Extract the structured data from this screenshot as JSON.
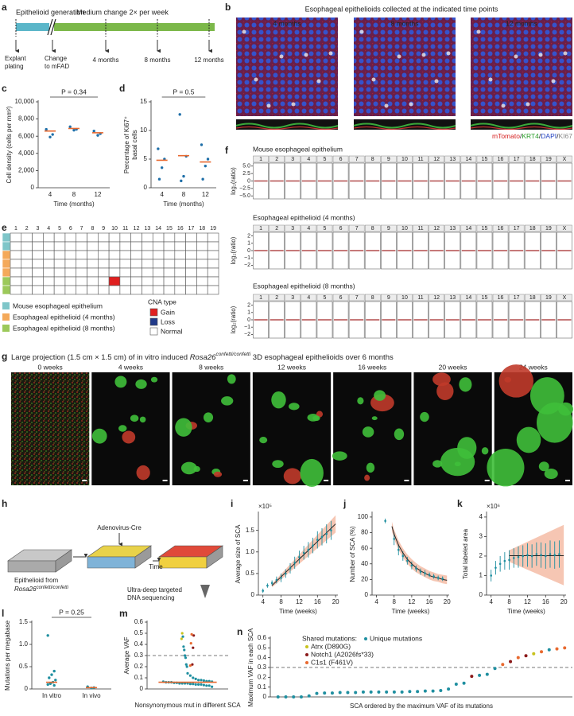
{
  "letters": [
    "a",
    "b",
    "c",
    "d",
    "e",
    "f",
    "g",
    "h",
    "i",
    "j",
    "k",
    "l",
    "m",
    "n"
  ],
  "panel_a": {
    "phase1": "Epithelioid generation",
    "phase1_color": "#5bb6c9",
    "phase2": "Medium change 2× per week",
    "phase2_color": "#7cb84a",
    "explant": [
      "Explant",
      "plating"
    ],
    "change": [
      "Change",
      "to mFAD"
    ],
    "timepoints": [
      "4 months",
      "8 months",
      "12 months"
    ]
  },
  "panel_b": {
    "title": "Esophageal epithelioids collected at the indicated time points",
    "labels": [
      "4 months",
      "8 months",
      "12 months"
    ],
    "stains": [
      {
        "text": "mTomato",
        "color": "#d62020"
      },
      {
        "text": "/",
        "color": "#222222"
      },
      {
        "text": "KRT4",
        "color": "#2a9d2a"
      },
      {
        "text": "/",
        "color": "#222222"
      },
      {
        "text": "DAPI",
        "color": "#2040c0"
      },
      {
        "text": "/",
        "color": "#222222"
      },
      {
        "text": "KI67",
        "color": "#888888"
      }
    ]
  },
  "panel_e": {
    "columns": [
      1,
      2,
      3,
      4,
      5,
      6,
      7,
      8,
      9,
      10,
      11,
      12,
      13,
      14,
      15,
      16,
      17,
      18,
      19
    ],
    "row_groups": [
      0,
      0,
      1,
      1,
      1,
      2,
      2
    ],
    "gains": [
      [
        5,
        9
      ]
    ],
    "groups": [
      {
        "name": "Mouse esophageal epithelium",
        "color": "#7fc6c9"
      },
      {
        "name": "Esophageal epithelioid (4 months)",
        "color": "#f4a95a"
      },
      {
        "name": "Esophageal epithelioid (8 months)",
        "color": "#9cc95a"
      }
    ],
    "cna_title": "CNA type",
    "cna": [
      {
        "name": "Gain",
        "color": "#e02020"
      },
      {
        "name": "Loss",
        "color": "#203a8a"
      },
      {
        "name": "Normal",
        "color": "#ffffff"
      }
    ]
  },
  "panel_f": {
    "ylabel": "log₂(ratio)",
    "chromosomes": [
      1,
      2,
      3,
      4,
      5,
      6,
      7,
      8,
      9,
      10,
      11,
      12,
      13,
      14,
      15,
      16,
      17,
      18,
      19,
      "X"
    ],
    "plots": [
      {
        "title": "Mouse esophageal epithelium",
        "ylim": [
          -6,
          6
        ],
        "yticks": [
          {
            "value": 5,
            "label": "5.0"
          },
          2.5,
          0,
          {
            "value": -2.5,
            "label": "−2.5"
          },
          {
            "value": -5,
            "label": "−5.0"
          }
        ]
      },
      {
        "title": "Esophageal epithelioid (4 months)",
        "ylim": [
          -2.5,
          2.5
        ],
        "yticks": [
          2,
          1,
          0,
          {
            "value": -1,
            "label": "−1"
          },
          {
            "value": -2,
            "label": "−2"
          }
        ]
      },
      {
        "title": "Esophageal epithelioid (8 months)",
        "ylim": [
          -2.5,
          2.5
        ],
        "yticks": [
          2,
          1,
          0,
          {
            "value": -1,
            "label": "−1"
          },
          {
            "value": -2,
            "label": "−2"
          }
        ]
      }
    ]
  },
  "panel_g": {
    "title": [
      "Large projection (1.5 cm × 1.5 cm) of in vitro induced ",
      "Rosa26",
      "confetti/confetti",
      " 3D esophageal epithelioids over 6 months"
    ],
    "labels": [
      "0 weeks",
      "4 weeks",
      "8 weeks",
      "12 weeks",
      "16 weeks",
      "20 weeks",
      "24 weeks"
    ]
  },
  "panel_h": {
    "virus": "Adenovirus-Cre",
    "time": "Time",
    "source": [
      "Epithelioid from",
      "Rosa26",
      "confetti/confetti"
    ],
    "sequencing": [
      "Ultra-deep targeted",
      "DNA sequencing"
    ]
  },
  "chart_data": [
    {
      "type": "dot",
      "ylabel": "Cell density (cells per mm²)",
      "xlabel": "Time (months)",
      "categories": [
        "4",
        "8",
        "12"
      ],
      "values": [
        [
          6800,
          6200,
          5900
        ],
        [
          7100,
          6800,
          6700
        ],
        [
          6600,
          6300,
          6100
        ]
      ],
      "medians": [
        6600,
        6900,
        6400
      ],
      "color": "#1f6fa8",
      "median_color": "#e8692f",
      "annotation": "P = 0.34",
      "ylim": [
        0,
        10000
      ],
      "yticks": [
        0,
        {
          "value": 2000,
          "label": "2,000"
        },
        {
          "value": 4000,
          "label": "4,000"
        },
        {
          "value": 6000,
          "label": "6,000"
        },
        {
          "value": 8000,
          "label": "8,000"
        },
        {
          "value": 10000,
          "label": "10,000"
        }
      ]
    },
    {
      "type": "dot",
      "ylabel": [
        "Percentage of Ki67⁺",
        "basal cells"
      ],
      "xlabel": "Time (months)",
      "categories": [
        "4",
        "8",
        "12"
      ],
      "values": [
        [
          6.8,
          5,
          3.5,
          1.5
        ],
        [
          12.8,
          5.5,
          2,
          1.2
        ],
        [
          7.5,
          5,
          3.8,
          1.5
        ]
      ],
      "medians": [
        4.8,
        5.6,
        4.5
      ],
      "color": "#1f6fa8",
      "median_color": "#e8692f",
      "annotation": "P = 0.5",
      "ylim": [
        0,
        15
      ],
      "yticks": [
        0,
        5,
        10,
        15
      ]
    },
    {
      "type": "errorbar",
      "ylabel": "Average size of SCA",
      "multiplier": "×10⁵",
      "xlabel": "Time (weeks)",
      "x": [
        4,
        5,
        6,
        7,
        8,
        9,
        10,
        11,
        12,
        13,
        14,
        15,
        16,
        17,
        18,
        19
      ],
      "values": [
        0.1,
        0.22,
        0.28,
        0.35,
        0.4,
        0.5,
        0.62,
        0.75,
        0.88,
        0.98,
        1.05,
        1.15,
        1.28,
        1.35,
        1.42,
        1.5
      ],
      "errors": [
        0.05,
        0.05,
        0.06,
        0.08,
        0.1,
        0.1,
        0.12,
        0.14,
        0.15,
        0.16,
        0.18,
        0.18,
        0.2,
        0.2,
        0.22,
        0.22
      ],
      "fit": {
        "x": [
          6,
          20
        ],
        "y": [
          0.22,
          1.65
        ],
        "low": [
          0.18,
          1.45
        ],
        "high": [
          0.26,
          1.85
        ]
      },
      "color": "#1f8fa0",
      "fit_color": "#222222",
      "band_color": "#f4b8a0",
      "xlim": [
        3,
        20.5
      ],
      "xticks": [
        4,
        8,
        12,
        16,
        20
      ],
      "ylim": [
        0,
        1.9
      ],
      "yticks": [
        0,
        0.5,
        {
          "value": 1,
          "label": "1.0"
        },
        1.5
      ]
    },
    {
      "type": "errorbar",
      "ylabel": "Number of SCA (%)",
      "xlabel": "Time (weeks)",
      "x": [
        6,
        8,
        9,
        10,
        11,
        12,
        13,
        14,
        15,
        16,
        17,
        18,
        19
      ],
      "values": [
        95,
        72,
        58,
        50,
        44,
        38,
        34,
        30,
        28,
        26,
        24,
        22,
        21
      ],
      "errors": [
        3,
        8,
        7,
        6,
        5,
        5,
        4,
        4,
        4,
        3,
        3,
        3,
        3
      ],
      "fit": {
        "x": [
          7.5,
          8,
          9,
          10,
          11,
          12,
          13,
          14,
          15,
          16,
          17,
          18,
          19,
          20
        ],
        "y": [
          88,
          78,
          64,
          54,
          46,
          40,
          35,
          31,
          28,
          25,
          23,
          22,
          20,
          19
        ],
        "low": [
          82,
          72,
          58,
          48,
          40,
          34,
          29,
          26,
          23,
          20,
          18,
          17,
          15,
          14
        ],
        "high": [
          94,
          84,
          70,
          60,
          52,
          46,
          41,
          37,
          34,
          31,
          29,
          27,
          26,
          25
        ]
      },
      "color": "#1f8fa0",
      "fit_color": "#222222",
      "band_color": "#f4b8a0",
      "xlim": [
        3,
        20.5
      ],
      "xticks": [
        4,
        8,
        12,
        16,
        20
      ],
      "ylim": [
        0,
        105
      ],
      "yticks": [
        0,
        20,
        40,
        60,
        80,
        100
      ]
    },
    {
      "type": "errorbar",
      "ylabel": "Total labeled area",
      "multiplier": "×10⁶",
      "xlabel": "Time (weeks)",
      "x": [
        4,
        5,
        6,
        7,
        8,
        9,
        10,
        11,
        12,
        13,
        14,
        15,
        16,
        17,
        18,
        19
      ],
      "values": [
        1.0,
        1.4,
        1.6,
        1.75,
        1.8,
        1.9,
        1.95,
        2.0,
        2.05,
        2.0,
        2.1,
        2.05,
        2.0,
        2.1,
        2.05,
        2.1
      ],
      "errors": [
        0.3,
        0.35,
        0.4,
        0.45,
        0.5,
        0.5,
        0.55,
        0.55,
        0.6,
        0.6,
        0.6,
        0.65,
        0.65,
        0.7,
        0.7,
        0.7
      ],
      "fit": {
        "x": [
          8,
          20
        ],
        "y": [
          2.02,
          2.02
        ],
        "low": [
          1.7,
          0.5
        ],
        "high": [
          2.3,
          3.6
        ]
      },
      "color": "#1f8fa0",
      "fit_color": "#222222",
      "band_color": "#f4b8a0",
      "xlim": [
        3,
        20.5
      ],
      "xticks": [
        4,
        8,
        12,
        16,
        20
      ],
      "ylim": [
        0,
        4.2
      ],
      "yticks": [
        0,
        1,
        2,
        3,
        4
      ]
    },
    {
      "type": "dot",
      "ylabel": "Mutations per megabase",
      "categories": [
        "In vitro",
        "In vivo"
      ],
      "values": [
        [
          1.2,
          0.4,
          0.32,
          0.25,
          0.2,
          0.15,
          0.12,
          0.1,
          0.08
        ],
        [
          0.05,
          0.03,
          0.02
        ]
      ],
      "medians": [
        0.15,
        0.03
      ],
      "color": "#1f8fa0",
      "median_color": "#e8692f",
      "annotation": "P = 0.25",
      "ylim": [
        0,
        1.5
      ],
      "yticks": [
        0,
        0.5,
        {
          "value": 1,
          "label": "1.0"
        },
        1.5
      ]
    },
    {
      "type": "strip",
      "ylabel": "Average VAF",
      "xlabel": "Nonsynonymous mut in different SCA",
      "median": 0.06,
      "median_color": "#e8692f",
      "threshold": 0.3,
      "series": [
        {
          "color": "#1f8fa0",
          "values": [
            0.02,
            0.03,
            0.03,
            0.035,
            0.04,
            0.04,
            0.04,
            0.045,
            0.045,
            0.05,
            0.05,
            0.05,
            0.05,
            0.055,
            0.055,
            0.06,
            0.06,
            0.06,
            0.065,
            0.065,
            0.07,
            0.07,
            0.075,
            0.08,
            0.08,
            0.09,
            0.1,
            0.12,
            0.14,
            0.2,
            0.22,
            0.28,
            0.3,
            0.35,
            0.38,
            0.47
          ]
        },
        {
          "color": "#c8c21e",
          "values": [
            0.5,
            0.45
          ]
        },
        {
          "color": "#8b1a1a",
          "values": [
            0.48,
            0.37,
            0.22
          ]
        },
        {
          "color": "#e8692f",
          "values": [
            0.49,
            0.41,
            0.21
          ]
        }
      ],
      "ylim": [
        0,
        0.6
      ],
      "yticks": [
        0,
        0.1,
        0.2,
        0.3,
        0.4,
        0.5,
        0.6
      ]
    },
    {
      "type": "scatter",
      "ylabel": "Maximum VAF in each SCA",
      "xlabel": "SCA ordered by the maximum VAF of its mutations",
      "threshold": 0.3,
      "legend_title": "Shared mutations:",
      "series": [
        {
          "name": "Atrx (D890G)",
          "color": "#c8c21e",
          "x": [
            34
          ],
          "values": [
            0.44
          ]
        },
        {
          "name": "Notch1 (A2026fs*33)",
          "color": "#8b1a1a",
          "x": [
            26,
            31,
            33
          ],
          "values": [
            0.21,
            0.36,
            0.42
          ]
        },
        {
          "name": "C1s1 (F461V)",
          "color": "#e8692f",
          "x": [
            30,
            32,
            35,
            37,
            38
          ],
          "values": [
            0.33,
            0.4,
            0.46,
            0.49,
            0.5
          ]
        },
        {
          "name": "Unique mutations",
          "color": "#1f8fa0",
          "x": [
            1,
            2,
            3,
            4,
            5,
            6,
            7,
            8,
            9,
            10,
            11,
            12,
            13,
            14,
            15,
            16,
            17,
            18,
            19,
            20,
            21,
            22,
            23,
            24,
            25,
            27,
            28,
            29,
            36
          ],
          "values": [
            0,
            0,
            0,
            0,
            0.01,
            0.035,
            0.04,
            0.04,
            0.045,
            0.045,
            0.045,
            0.05,
            0.05,
            0.05,
            0.05,
            0.05,
            0.05,
            0.055,
            0.055,
            0.06,
            0.06,
            0.065,
            0.08,
            0.13,
            0.14,
            0.22,
            0.23,
            0.29,
            0.48
          ]
        }
      ],
      "xlim": [
        0,
        39
      ],
      "ylim": [
        0,
        0.6
      ],
      "yticks": [
        0,
        0.1,
        0.2,
        0.3,
        0.4,
        0.5,
        0.6
      ]
    }
  ]
}
